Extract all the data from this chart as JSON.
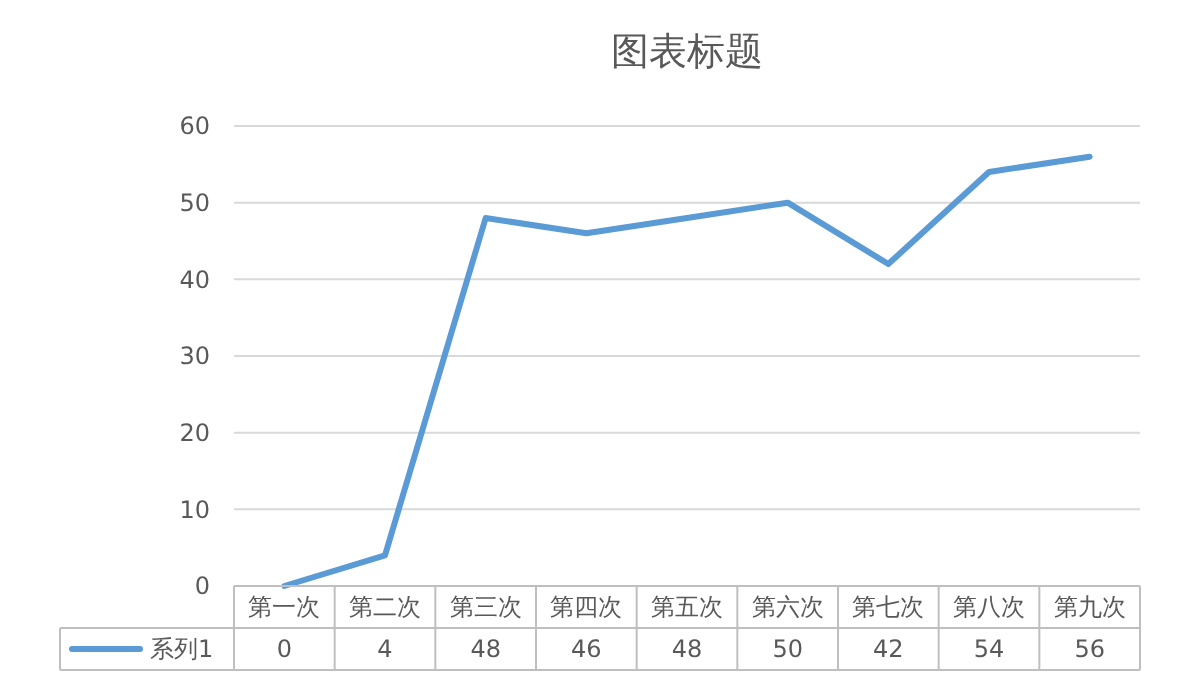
{
  "chart_data": {
    "type": "line",
    "title": "图表标题",
    "categories": [
      "第一次",
      "第二次",
      "第三次",
      "第四次",
      "第五次",
      "第六次",
      "第七次",
      "第八次",
      "第九次"
    ],
    "series": [
      {
        "name": "系列1",
        "color": "#5b9bd5",
        "values": [
          0,
          4,
          48,
          46,
          48,
          50,
          42,
          54,
          56
        ]
      }
    ],
    "ylim": [
      0,
      60
    ],
    "yticks": [
      0,
      10,
      20,
      30,
      40,
      50,
      60
    ],
    "grid": "y",
    "legend": "bottom",
    "data_labels": true,
    "marker": "none",
    "line_style": "solid"
  }
}
